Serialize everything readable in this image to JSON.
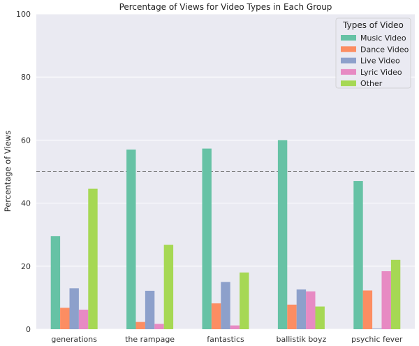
{
  "chart_data": {
    "type": "bar",
    "title": "Percentage of Views for Video Types in Each Group",
    "xlabel": "",
    "ylabel": "Percentage of Views",
    "ylim": [
      0,
      100
    ],
    "yticks": [
      0,
      20,
      40,
      60,
      80,
      100
    ],
    "grid": true,
    "reference_line": {
      "value": 50,
      "style": "dashed"
    },
    "categories": [
      "generations",
      "the rampage",
      "fantastics",
      "ballistik boyz",
      "psychic fever"
    ],
    "legend": {
      "title": "Types of Video",
      "placement": "top-right"
    },
    "series": [
      {
        "name": "Music Video",
        "color": "#66c2a5",
        "values": [
          29.5,
          57.0,
          57.3,
          60.0,
          47.0
        ]
      },
      {
        "name": "Dance Video",
        "color": "#fc8d62",
        "values": [
          6.8,
          2.3,
          8.2,
          7.8,
          12.3
        ]
      },
      {
        "name": "Live Video",
        "color": "#8da0cb",
        "values": [
          13.0,
          12.2,
          15.0,
          12.6,
          0.2
        ]
      },
      {
        "name": "Lyric Video",
        "color": "#e78ac3",
        "values": [
          6.2,
          1.7,
          1.2,
          12.0,
          18.4
        ]
      },
      {
        "name": "Other",
        "color": "#a6d854",
        "values": [
          44.6,
          26.8,
          18.0,
          7.2,
          22.0
        ]
      }
    ]
  }
}
